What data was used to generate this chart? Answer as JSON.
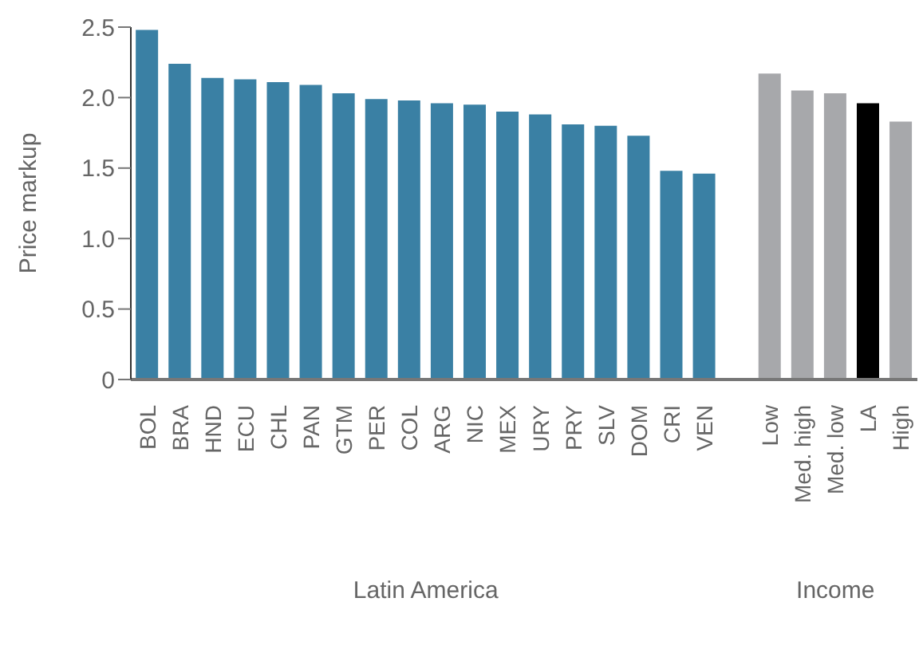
{
  "chart_data": {
    "type": "bar",
    "ylabel": "Price markup",
    "categories": [
      "BOL",
      "BRA",
      "HND",
      "ECU",
      "CHL",
      "PAN",
      "GTM",
      "PER",
      "COL",
      "ARG",
      "NIC",
      "MEX",
      "URY",
      "PRY",
      "SLV",
      "DOM",
      "CRI",
      "VEN",
      null,
      "Low",
      "Med. high",
      "Med. low",
      "LA",
      "High"
    ],
    "values": [
      2.48,
      2.24,
      2.14,
      2.13,
      2.11,
      2.09,
      2.03,
      1.99,
      1.98,
      1.96,
      1.95,
      1.9,
      1.88,
      1.81,
      1.8,
      1.73,
      1.48,
      1.46,
      null,
      2.17,
      2.05,
      2.03,
      1.96,
      1.83
    ],
    "colors": [
      "#3a80a4",
      "#3a80a4",
      "#3a80a4",
      "#3a80a4",
      "#3a80a4",
      "#3a80a4",
      "#3a80a4",
      "#3a80a4",
      "#3a80a4",
      "#3a80a4",
      "#3a80a4",
      "#3a80a4",
      "#3a80a4",
      "#3a80a4",
      "#3a80a4",
      "#3a80a4",
      "#3a80a4",
      "#3a80a4",
      null,
      "#a7a8ab",
      "#a7a8ab",
      "#a7a8ab",
      "#000000",
      "#a7a8ab"
    ],
    "ylim": [
      0,
      2.5
    ],
    "yticks": [
      0,
      0.5,
      {
        "value": 1,
        "label": "1.0"
      },
      1.5,
      {
        "value": 2,
        "label": "2.0"
      },
      2.5
    ],
    "annotations": [
      "Latin America",
      "Income"
    ],
    "grid": false,
    "legend": false
  }
}
